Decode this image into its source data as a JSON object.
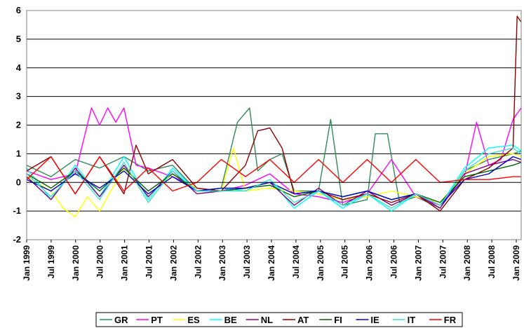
{
  "chart_data": {
    "type": "line",
    "title": "",
    "xlabel": "",
    "ylabel": "",
    "ylim": [
      -2,
      6
    ],
    "xlim": [
      "1999-01",
      "2009-03"
    ],
    "y_ticks": [
      "-2",
      "-1",
      "0",
      "1",
      "2",
      "3",
      "4",
      "5",
      "6"
    ],
    "x_ticks": [
      "Jan 1999",
      "Jul 1999",
      "Jan 2000",
      "Jul 2000",
      "Jan 2001",
      "Jul 2001",
      "Jan 2002",
      "Jul 2002",
      "Jan 2003",
      "Jul 2003",
      "Jan 2004",
      "Jul 2004",
      "Jan 2005",
      "Jul 2005",
      "Jan 2006",
      "Jul 2006",
      "Jan 2007",
      "Jul 2007",
      "Jan 2008",
      "Jul 2008",
      "Jan 2009"
    ],
    "grid": "horizontal",
    "legend_position": "bottom",
    "series": [
      {
        "name": "GR",
        "color": "#2e8b57",
        "x": [
          "1999-01",
          "1999-07",
          "2000-01",
          "2000-07",
          "2001-01",
          "2001-07",
          "2002-01",
          "2002-07",
          "2003-01",
          "2003-05",
          "2003-08",
          "2003-10",
          "2004-01",
          "2004-04",
          "2004-07",
          "2005-01",
          "2005-04",
          "2005-07",
          "2006-01",
          "2006-03",
          "2006-06",
          "2006-09",
          "2007-01",
          "2007-07",
          "2008-01",
          "2008-07",
          "2009-01",
          "2009-03"
        ],
        "values": [
          0.6,
          0.2,
          0.8,
          0.5,
          0.9,
          0.4,
          0.6,
          -0.3,
          -0.2,
          2.1,
          2.6,
          0.4,
          0.8,
          1.0,
          -0.3,
          -0.3,
          2.2,
          -0.8,
          -0.6,
          1.7,
          1.7,
          -0.7,
          -0.5,
          -0.9,
          0.4,
          0.8,
          1.0,
          1.1
        ]
      },
      {
        "name": "PT",
        "color": "#ff00ff",
        "x": [
          "1999-01",
          "1999-07",
          "2000-01",
          "2000-05",
          "2000-07",
          "2000-09",
          "2000-11",
          "2001-01",
          "2001-04",
          "2001-07",
          "2002-01",
          "2002-07",
          "2003-01",
          "2003-07",
          "2004-01",
          "2004-07",
          "2005-01",
          "2005-07",
          "2006-01",
          "2006-07",
          "2007-01",
          "2007-07",
          "2008-01",
          "2008-04",
          "2008-07",
          "2008-10",
          "2009-01",
          "2009-03"
        ],
        "values": [
          0.4,
          0.1,
          0.3,
          2.6,
          2.0,
          2.6,
          2.1,
          2.6,
          0.6,
          0.5,
          0.2,
          -0.2,
          -0.3,
          -0.1,
          0.3,
          -0.4,
          -0.5,
          -0.7,
          -0.4,
          0.8,
          -0.5,
          -0.8,
          0.2,
          2.1,
          0.6,
          0.8,
          2.2,
          2.6
        ]
      },
      {
        "name": "ES",
        "color": "#ffff00",
        "x": [
          "1999-01",
          "1999-07",
          "1999-10",
          "2000-01",
          "2000-04",
          "2000-07",
          "2001-01",
          "2001-07",
          "2002-01",
          "2002-07",
          "2003-01",
          "2003-04",
          "2003-07",
          "2004-01",
          "2004-07",
          "2005-01",
          "2005-07",
          "2006-01",
          "2006-07",
          "2007-01",
          "2007-07",
          "2008-01",
          "2008-07",
          "2009-01",
          "2009-03"
        ],
        "values": [
          0.2,
          -0.3,
          -0.9,
          -1.2,
          -0.5,
          -1.0,
          0.5,
          -0.5,
          0.3,
          -0.2,
          -0.3,
          1.2,
          -0.3,
          -0.2,
          -0.3,
          -0.4,
          -0.6,
          -0.5,
          -0.3,
          -0.5,
          -0.7,
          0.3,
          0.9,
          1.0,
          0.9
        ]
      },
      {
        "name": "BE",
        "color": "#00ffff",
        "x": [
          "1999-01",
          "1999-07",
          "2000-01",
          "2000-07",
          "2001-01",
          "2001-07",
          "2002-01",
          "2002-07",
          "2003-01",
          "2003-07",
          "2004-01",
          "2004-07",
          "2005-01",
          "2005-07",
          "2006-01",
          "2006-07",
          "2007-01",
          "2007-07",
          "2008-01",
          "2008-07",
          "2009-01",
          "2009-03"
        ],
        "values": [
          0.5,
          -0.6,
          0.6,
          -0.5,
          0.9,
          -0.6,
          0.5,
          -0.3,
          -0.2,
          -0.3,
          0.1,
          -0.9,
          -0.3,
          -0.9,
          -0.4,
          -1.0,
          -0.4,
          -0.8,
          0.5,
          1.2,
          1.3,
          1.1
        ]
      },
      {
        "name": "NL",
        "color": "#800080",
        "x": [
          "1999-01",
          "1999-07",
          "2000-01",
          "2000-07",
          "2001-01",
          "2001-07",
          "2002-01",
          "2002-07",
          "2003-01",
          "2003-07",
          "2004-01",
          "2004-07",
          "2005-01",
          "2005-07",
          "2006-01",
          "2006-07",
          "2007-01",
          "2007-07",
          "2008-01",
          "2008-07",
          "2009-01",
          "2009-03"
        ],
        "values": [
          0.2,
          -0.6,
          0.5,
          -0.5,
          0.6,
          -0.5,
          0.4,
          -0.4,
          -0.3,
          -0.2,
          0.0,
          -0.8,
          -0.2,
          -0.8,
          -0.3,
          -0.8,
          -0.4,
          -0.9,
          0.3,
          0.6,
          0.8,
          0.7
        ]
      },
      {
        "name": "AT",
        "color": "#8b0000",
        "x": [
          "1999-01",
          "1999-07",
          "2000-01",
          "2000-07",
          "2001-01",
          "2001-04",
          "2001-07",
          "2002-01",
          "2002-07",
          "2003-01",
          "2003-07",
          "2003-10",
          "2004-01",
          "2004-04",
          "2004-07",
          "2005-01",
          "2005-07",
          "2006-01",
          "2006-07",
          "2007-01",
          "2007-07",
          "2008-01",
          "2008-07",
          "2009-01",
          "2009-02",
          "2009-03"
        ],
        "values": [
          0.4,
          0.9,
          -0.4,
          0.9,
          -0.4,
          1.3,
          0.3,
          0.8,
          -0.2,
          -0.3,
          0.6,
          1.8,
          1.9,
          1.2,
          -0.4,
          -0.3,
          -0.6,
          -0.4,
          -0.7,
          -0.4,
          -1.0,
          0.1,
          0.5,
          1.2,
          5.8,
          5.6
        ]
      },
      {
        "name": "FI",
        "color": "#006400",
        "x": [
          "1999-01",
          "1999-07",
          "2000-01",
          "2000-07",
          "2001-01",
          "2001-07",
          "2002-01",
          "2002-07",
          "2003-01",
          "2003-07",
          "2004-01",
          "2004-07",
          "2005-01",
          "2005-07",
          "2006-01",
          "2006-07",
          "2007-01",
          "2007-07",
          "2008-01",
          "2008-07",
          "2009-01",
          "2009-03"
        ],
        "values": [
          0.3,
          -0.2,
          0.4,
          -0.3,
          0.5,
          -0.3,
          0.3,
          -0.3,
          -0.3,
          -0.2,
          -0.1,
          -0.5,
          -0.3,
          -0.5,
          -0.3,
          -0.6,
          -0.4,
          -0.7,
          0.2,
          0.4,
          0.6,
          0.7
        ]
      },
      {
        "name": "IE",
        "color": "#0000cd",
        "x": [
          "1999-01",
          "1999-07",
          "2000-01",
          "2000-07",
          "2001-01",
          "2001-07",
          "2002-01",
          "2002-07",
          "2003-01",
          "2003-07",
          "2004-01",
          "2004-07",
          "2005-01",
          "2005-07",
          "2006-01",
          "2006-07",
          "2007-01",
          "2007-07",
          "2008-01",
          "2008-07",
          "2009-01",
          "2009-03"
        ],
        "values": [
          0.1,
          -0.3,
          0.3,
          -0.2,
          0.4,
          -0.4,
          0.2,
          -0.3,
          -0.2,
          -0.2,
          0.0,
          -0.4,
          -0.3,
          -0.5,
          -0.3,
          -0.6,
          -0.4,
          -0.8,
          0.1,
          0.3,
          0.9,
          0.8
        ]
      },
      {
        "name": "IT",
        "color": "#40e0d0",
        "x": [
          "1999-01",
          "1999-07",
          "2000-01",
          "2000-07",
          "2001-01",
          "2001-07",
          "2002-01",
          "2002-07",
          "2003-01",
          "2003-07",
          "2004-01",
          "2004-07",
          "2005-01",
          "2005-07",
          "2006-01",
          "2006-07",
          "2007-01",
          "2007-07",
          "2008-01",
          "2008-07",
          "2009-01",
          "2009-03"
        ],
        "values": [
          0.3,
          -0.5,
          0.4,
          -0.6,
          0.7,
          -0.7,
          0.4,
          -0.3,
          -0.3,
          -0.3,
          0.1,
          -0.7,
          -0.3,
          -0.8,
          -0.4,
          -0.9,
          -0.4,
          -0.8,
          0.4,
          1.0,
          1.2,
          1.0
        ]
      },
      {
        "name": "FR",
        "color": "#ff0000",
        "x": [
          "1999-01",
          "1999-07",
          "2000-01",
          "2000-07",
          "2001-01",
          "2001-07",
          "2002-01",
          "2002-07",
          "2003-01",
          "2003-07",
          "2004-01",
          "2004-07",
          "2005-01",
          "2005-07",
          "2006-01",
          "2006-07",
          "2007-01",
          "2007-07",
          "2008-01",
          "2008-07",
          "2009-01",
          "2009-03"
        ],
        "values": [
          0.1,
          0.9,
          -0.4,
          0.9,
          -0.3,
          0.5,
          -0.3,
          0.0,
          0.8,
          0.2,
          0.8,
          0.0,
          0.8,
          0.0,
          0.8,
          0.0,
          0.8,
          0.0,
          0.1,
          0.1,
          0.2,
          0.2
        ]
      }
    ]
  }
}
